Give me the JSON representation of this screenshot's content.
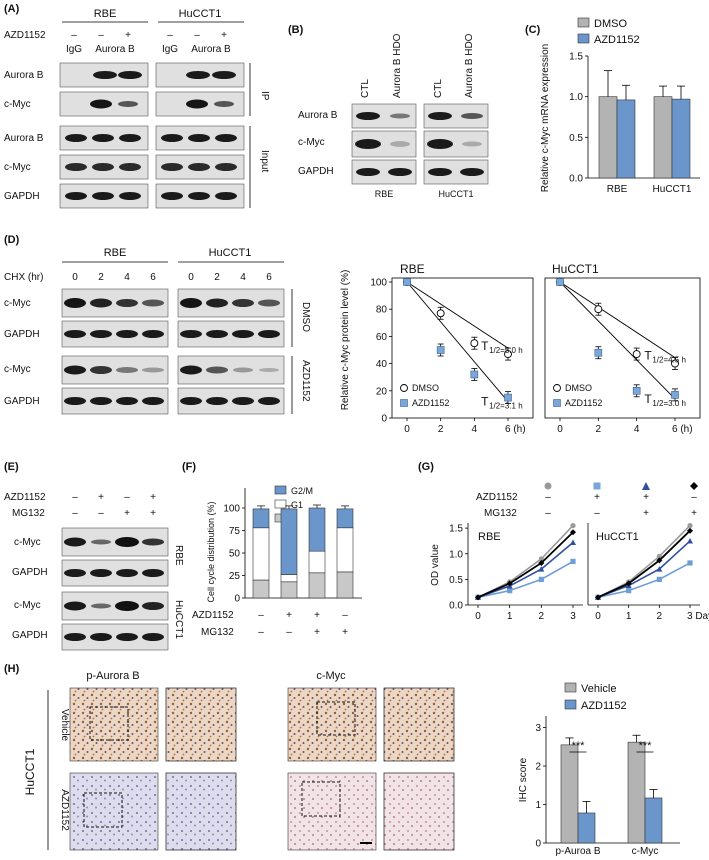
{
  "colors": {
    "gray_bar": "#b3b3b3",
    "blue_bar": "#6a96cc",
    "blot_dark": "#1e1e1e",
    "blot_bg": "#d8d8d8"
  },
  "panel_labels": {
    "A": "(A)",
    "B": "(B)",
    "C": "(C)",
    "D": "(D)",
    "E": "(E)",
    "F": "(F)",
    "G": "(G)",
    "H": "(H)"
  },
  "panel_a": {
    "cell_lines": [
      "RBE",
      "HuCCT1"
    ],
    "treatment_label": "AZD1152",
    "treatment_signs": [
      "–",
      "–",
      "+",
      "–",
      "–",
      "+"
    ],
    "lane_labels": [
      "IgG",
      "Aurora B",
      "IgG",
      "Aurora B"
    ],
    "rows": [
      "Aurora B",
      "c-Myc",
      "Aurora B",
      "c-Myc",
      "GAPDH"
    ],
    "group_labels": [
      "IP",
      "Input"
    ]
  },
  "panel_b": {
    "lanes": [
      "CTL",
      "Aurora B HDO",
      "CTL",
      "Aurora B HDO"
    ],
    "rows": [
      "Aurora B",
      "c-Myc",
      "GAPDH"
    ],
    "cell_lines": [
      "RBE",
      "HuCCT1"
    ]
  },
  "panel_c": {
    "chart_data": {
      "type": "bar",
      "categories": [
        "RBE",
        "HuCCT1"
      ],
      "series": [
        {
          "name": "DMSO",
          "values": [
            1.0,
            1.0
          ],
          "errors": [
            0.32,
            0.13
          ]
        },
        {
          "name": "AZD1152",
          "values": [
            0.96,
            0.97
          ],
          "errors": [
            0.18,
            0.16
          ]
        }
      ],
      "ylabel": "Relative c-Myc mRNA expression",
      "ylim": [
        0,
        1.5
      ],
      "yticks": [
        "0.0",
        "0.5",
        "1.0",
        "1.5"
      ],
      "legend": "top"
    }
  },
  "panel_d_blot": {
    "cell_lines": [
      "RBE",
      "HuCCT1"
    ],
    "chx_label": "CHX (hr)",
    "timepoints": [
      "0",
      "2",
      "4",
      "6",
      "0",
      "2",
      "4",
      "6"
    ],
    "rows": [
      "c-Myc",
      "GAPDH",
      "c-Myc",
      "GAPDH"
    ],
    "group_labels": [
      "DMSO",
      "AZD1152"
    ]
  },
  "panel_d_chart": {
    "chart_data": [
      {
        "type": "scatter",
        "title": "RBE",
        "ylabel": "Relative c-Myc protein level (%)",
        "x": [
          0,
          2,
          4,
          6
        ],
        "xticks": [
          "0",
          "2",
          "4",
          "6 (h)"
        ],
        "yticks": [
          "0",
          "20",
          "40",
          "60",
          "80",
          "100"
        ],
        "ylim": [
          0,
          100
        ],
        "series": [
          {
            "name": "DMSO",
            "values": [
              100,
              77,
              55,
              47
            ],
            "half_life": "1/2=5.0 h"
          },
          {
            "name": "AZD1152",
            "values": [
              100,
              50,
              32,
              15
            ],
            "half_life": "1/2=3.1 h"
          }
        ]
      },
      {
        "type": "scatter",
        "title": "HuCCT1",
        "x": [
          0,
          2,
          4,
          6
        ],
        "xticks": [
          "0",
          "2",
          "4",
          "6 (h)"
        ],
        "ylim": [
          0,
          100
        ],
        "series": [
          {
            "name": "DMSO",
            "values": [
              100,
              80,
              47,
              40
            ],
            "half_life": "1/2=4.5 h"
          },
          {
            "name": "AZD1152",
            "values": [
              100,
              48,
              20,
              17
            ],
            "half_life": "1/2=3.0 h"
          }
        ]
      }
    ],
    "t_letter": "T"
  },
  "panel_e": {
    "treatments": [
      {
        "label": "AZD1152",
        "signs": [
          "–",
          "+",
          "–",
          "+"
        ]
      },
      {
        "label": "MG132",
        "signs": [
          "–",
          "–",
          "+",
          "+"
        ]
      }
    ],
    "rows": [
      "c-Myc",
      "GAPDH",
      "c-Myc",
      "GAPDH"
    ],
    "cell_lines": [
      "RBE",
      "HuCCT1"
    ]
  },
  "panel_f": {
    "chart_data": {
      "type": "bar",
      "stacked": true,
      "categories": [
        "1",
        "2",
        "3",
        "4"
      ],
      "series": [
        {
          "name": "S",
          "values": [
            20,
            18,
            28,
            29
          ]
        },
        {
          "name": "G1",
          "values": [
            58,
            8,
            24,
            49
          ]
        },
        {
          "name": "G2/M",
          "values": [
            21,
            73,
            48,
            21
          ]
        }
      ],
      "ylabel": "Cell cycle distribution (%)",
      "yticks": [
        "0",
        "25",
        "50",
        "75",
        "100"
      ],
      "ylim": [
        0,
        100
      ],
      "treatments": [
        {
          "label": "AZD1152",
          "signs": [
            "–",
            "+",
            "+",
            "–"
          ]
        },
        {
          "label": "MG132",
          "signs": [
            "–",
            "–",
            "+",
            "+"
          ]
        }
      ]
    }
  },
  "panel_g": {
    "chart_data": [
      {
        "type": "line",
        "title": "RBE",
        "ylabel": "OD value",
        "x": [
          0,
          1,
          2,
          3
        ],
        "xticks": [
          "0",
          "1",
          "2",
          "3"
        ],
        "yticks": [
          "0.0",
          "0.5",
          "1.0",
          "1.5"
        ],
        "ylim": [
          0,
          1.6
        ],
        "series": [
          {
            "name": "ctrl",
            "values": [
              0.15,
              0.45,
              0.9,
              1.55
            ]
          },
          {
            "name": "AZD1152",
            "values": [
              0.15,
              0.28,
              0.5,
              0.85
            ]
          },
          {
            "name": "AZD1152+MG132",
            "values": [
              0.15,
              0.37,
              0.7,
              1.22
            ]
          },
          {
            "name": "MG132",
            "values": [
              0.15,
              0.42,
              0.82,
              1.42
            ]
          }
        ]
      },
      {
        "type": "line",
        "title": "HuCCT1",
        "x": [
          0,
          1,
          2,
          3
        ],
        "xticks": [
          "0",
          "1",
          "2",
          "3 Days"
        ],
        "ylim": [
          0,
          1.6
        ],
        "series": [
          {
            "name": "ctrl",
            "values": [
              0.15,
              0.45,
              0.95,
              1.55
            ]
          },
          {
            "name": "AZD1152",
            "values": [
              0.15,
              0.28,
              0.5,
              0.82
            ]
          },
          {
            "name": "AZD1152+MG132",
            "values": [
              0.15,
              0.38,
              0.7,
              1.25
            ]
          },
          {
            "name": "MG132",
            "values": [
              0.15,
              0.42,
              0.87,
              1.45
            ]
          }
        ]
      }
    ],
    "treatments": [
      {
        "label": "AZD1152",
        "signs": [
          "–",
          "+",
          "+",
          "–"
        ]
      },
      {
        "label": "MG132",
        "signs": [
          "–",
          "–",
          "+",
          "+"
        ]
      }
    ]
  },
  "panel_h": {
    "stain_titles": [
      "p-Aurora B",
      "c-Myc"
    ],
    "cell_line": "HuCCT1",
    "row_labels": [
      "Vehicle",
      "AZD1152"
    ],
    "chart_data": {
      "type": "bar",
      "categories": [
        "p-Auroa B",
        "c-Myc"
      ],
      "series": [
        {
          "name": "Vehicle",
          "values": [
            2.55,
            2.62
          ],
          "errors": [
            0.18,
            0.18
          ]
        },
        {
          "name": "AZD1152",
          "values": [
            0.78,
            1.17
          ],
          "errors": [
            0.3,
            0.22
          ]
        }
      ],
      "ylabel": "IHC score",
      "yticks": [
        "0",
        "1",
        "2",
        "3"
      ],
      "ylim": [
        0,
        3.3
      ],
      "significance": [
        "***",
        "***"
      ],
      "legend": "top"
    }
  }
}
